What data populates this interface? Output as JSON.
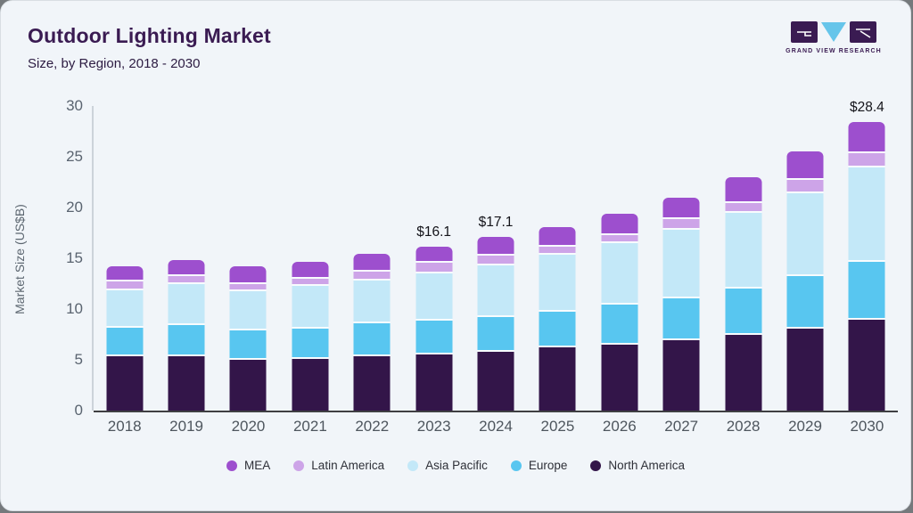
{
  "header": {
    "title": "Outdoor Lighting Market",
    "subtitle": "Size, by Region, 2018 - 2030"
  },
  "logo": {
    "text": "GRAND VIEW RESEARCH"
  },
  "chart_data": {
    "type": "bar",
    "stacked": true,
    "title": "Outdoor Lighting Market Size, by Region, 2018 - 2030",
    "ylabel": "Market Size (US$B)",
    "ylim": [
      0,
      30
    ],
    "yticks": [
      0,
      5,
      10,
      15,
      20,
      25,
      30
    ],
    "grid": false,
    "legend_position": "bottom",
    "categories": [
      "2018",
      "2019",
      "2020",
      "2021",
      "2022",
      "2023",
      "2024",
      "2025",
      "2026",
      "2027",
      "2028",
      "2029",
      "2030"
    ],
    "series": [
      {
        "name": "North America",
        "color": "#331549",
        "values": [
          5.5,
          5.55,
          5.2,
          5.3,
          5.5,
          5.7,
          6.0,
          6.4,
          6.7,
          7.1,
          7.6,
          8.25,
          9.1
        ]
      },
      {
        "name": "Europe",
        "color": "#58c6f0",
        "values": [
          2.8,
          3.05,
          2.9,
          2.95,
          3.3,
          3.3,
          3.4,
          3.5,
          3.9,
          4.15,
          4.6,
          5.15,
          5.7
        ]
      },
      {
        "name": "Asia Pacific",
        "color": "#c3e8f8",
        "values": [
          3.75,
          4.0,
          3.85,
          4.2,
          4.2,
          4.65,
          5.1,
          5.6,
          6.1,
          6.75,
          7.45,
          8.2,
          9.3
        ]
      },
      {
        "name": "Latin America",
        "color": "#cda4e8",
        "values": [
          0.85,
          0.8,
          0.7,
          0.7,
          0.85,
          1.05,
          0.9,
          0.8,
          0.8,
          1.05,
          0.95,
          1.3,
          1.4
        ]
      },
      {
        "name": "MEA",
        "color": "#9d4fce",
        "values": [
          1.3,
          1.45,
          1.55,
          1.5,
          1.6,
          1.4,
          1.7,
          1.8,
          1.9,
          1.95,
          2.4,
          2.6,
          2.9
        ]
      }
    ],
    "totals": [
      14.2,
      14.85,
      14.2,
      14.65,
      15.45,
      16.1,
      17.1,
      18.1,
      19.4,
      21.0,
      23.0,
      25.5,
      28.4
    ],
    "annotations": [
      {
        "category": "2023",
        "text": "$16.1"
      },
      {
        "category": "2024",
        "text": "$17.1"
      },
      {
        "category": "2030",
        "text": "$28.4"
      }
    ]
  }
}
